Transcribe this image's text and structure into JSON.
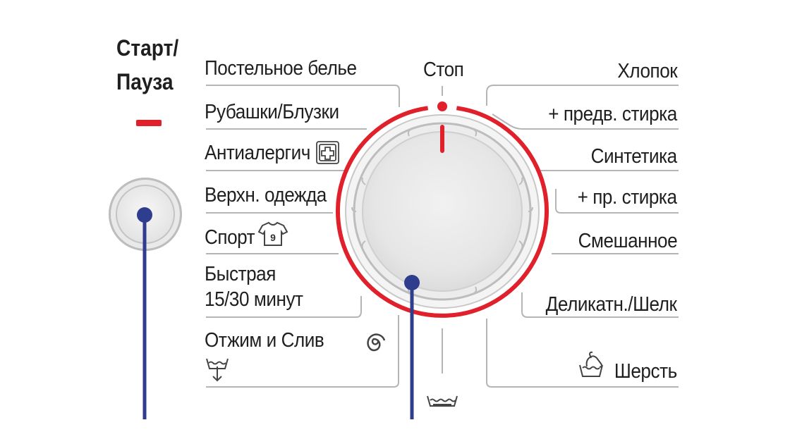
{
  "start_pause": {
    "line1": "Старт/",
    "line2": "Пауза"
  },
  "dial": {
    "stop_label": "Стоп"
  },
  "programs_left": [
    {
      "label": "Постельное белье"
    },
    {
      "label": "Рубашки/Блузки"
    },
    {
      "label": "Антиалергич"
    },
    {
      "label": "Верхн. одежда"
    },
    {
      "label": "Спорт"
    },
    {
      "label": "Быстрая",
      "label2": "15/30 минут"
    },
    {
      "label": "Отжим и Слив"
    }
  ],
  "programs_right": [
    {
      "label": "Хлопок"
    },
    {
      "label": "+ предв. стирка"
    },
    {
      "label": "Синтетика"
    },
    {
      "label": "+ пр. стирка"
    },
    {
      "label": "Смешанное"
    },
    {
      "label": "Деликатн./Шелк"
    },
    {
      "label": "Шерсть"
    }
  ],
  "icons": {
    "antiallergy": "plus-box-icon",
    "sport": "tshirt-9-icon",
    "spin": "spiral-icon",
    "drain": "drain-tub-icon",
    "wool": "hand-wash-icon",
    "rinse": "rinse-tub-icon"
  },
  "colors": {
    "accent": "#e0202a",
    "pointer": "#2f3d8f",
    "line": "#b5b5b5"
  }
}
